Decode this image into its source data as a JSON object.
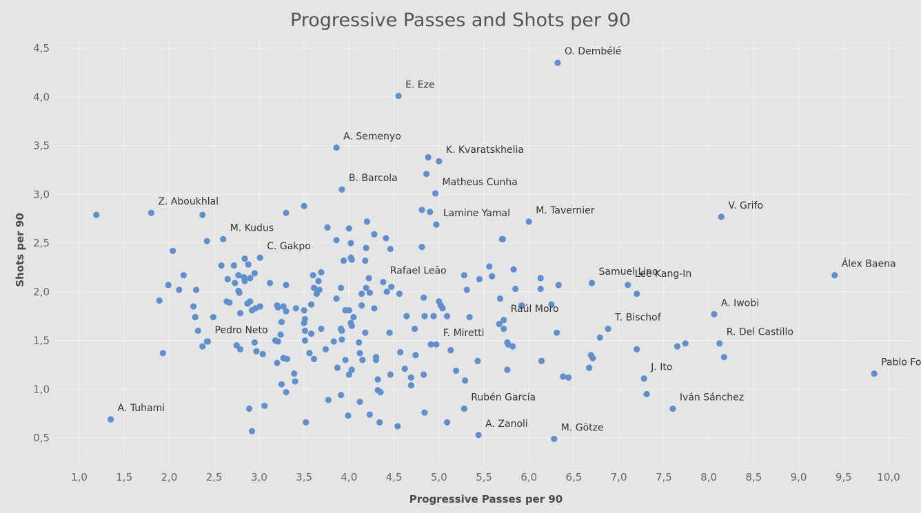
{
  "chart_data": {
    "type": "scatter",
    "title": "Progressive Passes and Shots per 90",
    "xlabel": "Progressive Passes per 90",
    "ylabel": "Shots per 90",
    "xlim": [
      0.75,
      10.35
    ],
    "ylim": [
      0.25,
      4.6
    ],
    "x_ticks": [
      1.0,
      1.5,
      2.0,
      2.5,
      3.0,
      3.5,
      4.0,
      4.5,
      5.0,
      5.5,
      6.0,
      6.5,
      7.0,
      7.5,
      8.0,
      8.5,
      9.0,
      9.5,
      10.0
    ],
    "x_tick_labels": [
      "1,0",
      "1,5",
      "2,0",
      "2,5",
      "3,0",
      "3,5",
      "4,0",
      "4,5",
      "5,0",
      "5,5",
      "6,0",
      "6,5",
      "7,0",
      "7,5",
      "8,0",
      "8,5",
      "9,0",
      "9,5",
      "10,0"
    ],
    "y_ticks": [
      0.5,
      1.0,
      1.5,
      2.0,
      2.5,
      3.0,
      3.5,
      4.0,
      4.5
    ],
    "y_tick_labels": [
      "0,5",
      "1,0",
      "1,5",
      "2,0",
      "2,5",
      "3,0",
      "3,5",
      "4,0",
      "4,5"
    ],
    "grid": true,
    "point_color": "#5f8fcc",
    "background": "#e5e5e5",
    "labeled_points": [
      {
        "name": "O. Dembélé",
        "x": 6.32,
        "y": 4.35
      },
      {
        "name": "E. Eze",
        "x": 4.55,
        "y": 4.01
      },
      {
        "name": "A. Semenyo",
        "x": 3.86,
        "y": 3.48
      },
      {
        "name": "K. Kvaratskhelia",
        "x": 5.0,
        "y": 3.34
      },
      {
        "name": "B. Barcola",
        "x": 3.92,
        "y": 3.05
      },
      {
        "name": "Matheus Cunha",
        "x": 4.96,
        "y": 3.01
      },
      {
        "name": "Z. Aboukhlal",
        "x": 1.8,
        "y": 2.81
      },
      {
        "name": "Lamine Yamal",
        "x": 4.97,
        "y": 2.69
      },
      {
        "name": "M. Tavernier",
        "x": 6.0,
        "y": 2.72
      },
      {
        "name": "V. Grifo",
        "x": 8.14,
        "y": 2.77
      },
      {
        "name": "M. Kudus",
        "x": 2.6,
        "y": 2.54
      },
      {
        "name": "C. Gakpo",
        "x": 3.01,
        "y": 2.35
      },
      {
        "name": "Rafael Leão",
        "x": 4.38,
        "y": 2.1
      },
      {
        "name": "Samuel Lino",
        "x": 6.7,
        "y": 2.09
      },
      {
        "name": "Lee Kang-In",
        "x": 7.1,
        "y": 2.07
      },
      {
        "name": "Álex Baena",
        "x": 9.4,
        "y": 2.17
      },
      {
        "name": "A. Iwobi",
        "x": 8.06,
        "y": 1.77
      },
      {
        "name": "Raúl Moro",
        "x": 5.72,
        "y": 1.71
      },
      {
        "name": "T. Bischof",
        "x": 6.88,
        "y": 1.62
      },
      {
        "name": "Pedro Neto",
        "x": 2.43,
        "y": 1.49
      },
      {
        "name": "F. Miretti",
        "x": 4.97,
        "y": 1.46
      },
      {
        "name": "R. Del Castillo",
        "x": 8.12,
        "y": 1.47
      },
      {
        "name": "Pablo Fornals",
        "x": 9.84,
        "y": 1.16
      },
      {
        "name": "J. Ito",
        "x": 7.28,
        "y": 1.11
      },
      {
        "name": "Rubén García",
        "x": 5.28,
        "y": 0.8
      },
      {
        "name": "Iván Sánchez",
        "x": 7.6,
        "y": 0.8
      },
      {
        "name": "A. Tuhami",
        "x": 1.35,
        "y": 0.69
      },
      {
        "name": "A. Zanoli",
        "x": 5.44,
        "y": 0.53
      },
      {
        "name": "M. Götze",
        "x": 6.28,
        "y": 0.49
      }
    ],
    "other_points": [
      [
        1.19,
        2.79
      ],
      [
        2.37,
        2.79
      ],
      [
        3.3,
        2.81
      ],
      [
        3.5,
        2.88
      ],
      [
        2.04,
        2.42
      ],
      [
        2.42,
        2.52
      ],
      [
        2.58,
        2.27
      ],
      [
        2.65,
        2.13
      ],
      [
        2.72,
        2.27
      ],
      [
        2.73,
        2.09
      ],
      [
        2.77,
        2.17
      ],
      [
        2.84,
        2.34
      ],
      [
        2.88,
        2.28
      ],
      [
        2.83,
        2.15
      ],
      [
        2.84,
        2.11
      ],
      [
        2.9,
        2.14
      ],
      [
        2.95,
        2.19
      ],
      [
        1.99,
        2.07
      ],
      [
        2.11,
        2.02
      ],
      [
        2.16,
        2.17
      ],
      [
        2.3,
        2.02
      ],
      [
        1.89,
        1.91
      ],
      [
        2.27,
        1.85
      ],
      [
        2.29,
        1.74
      ],
      [
        2.32,
        1.6
      ],
      [
        2.37,
        1.44
      ],
      [
        2.49,
        1.74
      ],
      [
        2.64,
        1.9
      ],
      [
        2.67,
        1.89
      ],
      [
        2.77,
        2.01
      ],
      [
        2.78,
        1.99
      ],
      [
        2.79,
        1.78
      ],
      [
        2.87,
        1.88
      ],
      [
        2.9,
        1.9
      ],
      [
        2.92,
        1.81
      ],
      [
        2.96,
        1.83
      ],
      [
        3.01,
        1.85
      ],
      [
        3.12,
        2.09
      ],
      [
        3.3,
        2.07
      ],
      [
        3.2,
        1.86
      ],
      [
        3.21,
        1.84
      ],
      [
        3.27,
        1.85
      ],
      [
        3.3,
        1.8
      ],
      [
        3.41,
        1.83
      ],
      [
        3.5,
        1.81
      ],
      [
        3.58,
        1.87
      ],
      [
        3.6,
        2.17
      ],
      [
        3.66,
        2.11
      ],
      [
        3.69,
        2.2
      ],
      [
        3.61,
        2.04
      ],
      [
        3.67,
        2.02
      ],
      [
        3.64,
        1.98
      ],
      [
        3.76,
        2.66
      ],
      [
        3.86,
        2.53
      ],
      [
        3.94,
        2.32
      ],
      [
        4.0,
        2.65
      ],
      [
        4.02,
        2.5
      ],
      [
        4.02,
        2.35
      ],
      [
        4.03,
        2.33
      ],
      [
        4.2,
        2.72
      ],
      [
        4.28,
        2.59
      ],
      [
        4.41,
        2.55
      ],
      [
        4.46,
        2.44
      ],
      [
        4.19,
        2.45
      ],
      [
        4.18,
        2.32
      ],
      [
        4.81,
        2.46
      ],
      [
        4.81,
        2.84
      ],
      [
        4.86,
        3.21
      ],
      [
        4.88,
        3.38
      ],
      [
        4.9,
        2.82
      ],
      [
        1.93,
        1.37
      ],
      [
        2.42,
        1.49
      ],
      [
        2.75,
        1.45
      ],
      [
        2.79,
        1.41
      ],
      [
        2.95,
        1.48
      ],
      [
        2.97,
        1.39
      ],
      [
        3.04,
        1.36
      ],
      [
        3.18,
        1.5
      ],
      [
        3.21,
        1.49
      ],
      [
        3.24,
        1.56
      ],
      [
        3.25,
        1.69
      ],
      [
        3.27,
        1.32
      ],
      [
        3.31,
        1.31
      ],
      [
        3.2,
        1.27
      ],
      [
        3.39,
        1.16
      ],
      [
        3.4,
        1.08
      ],
      [
        3.25,
        1.05
      ],
      [
        3.3,
        0.97
      ],
      [
        3.5,
        1.68
      ],
      [
        3.51,
        1.72
      ],
      [
        3.51,
        1.6
      ],
      [
        3.51,
        1.5
      ],
      [
        3.58,
        1.57
      ],
      [
        3.56,
        1.37
      ],
      [
        3.61,
        1.31
      ],
      [
        3.69,
        1.62
      ],
      [
        3.74,
        1.41
      ],
      [
        3.91,
        1.62
      ],
      [
        3.92,
        1.51
      ],
      [
        3.87,
        1.22
      ],
      [
        3.96,
        1.3
      ],
      [
        3.96,
        1.81
      ],
      [
        4.0,
        1.81
      ],
      [
        3.91,
        2.04
      ],
      [
        3.86,
        1.93
      ],
      [
        4.02,
        1.68
      ],
      [
        4.03,
        1.65
      ],
      [
        4.05,
        1.74
      ],
      [
        4.11,
        1.48
      ],
      [
        4.12,
        1.37
      ],
      [
        4.15,
        1.3
      ],
      [
        4.18,
        1.58
      ],
      [
        4.19,
        2.04
      ],
      [
        4.22,
        2.14
      ],
      [
        4.23,
        1.99
      ],
      [
        4.28,
        1.83
      ],
      [
        4.3,
        1.33
      ],
      [
        4.3,
        1.3
      ],
      [
        4.32,
        1.1
      ],
      [
        4.32,
        0.99
      ],
      [
        4.35,
        0.97
      ],
      [
        4.14,
        1.86
      ],
      [
        4.14,
        1.98
      ],
      [
        4.45,
        1.58
      ],
      [
        4.46,
        1.15
      ],
      [
        4.47,
        2.05
      ],
      [
        4.56,
        1.98
      ],
      [
        4.42,
        2.0
      ],
      [
        4.57,
        1.38
      ],
      [
        4.62,
        1.21
      ],
      [
        4.64,
        1.75
      ],
      [
        4.69,
        1.12
      ],
      [
        4.69,
        1.04
      ],
      [
        4.73,
        1.62
      ],
      [
        4.74,
        1.35
      ],
      [
        4.83,
        1.94
      ],
      [
        4.83,
        1.15
      ],
      [
        4.84,
        1.75
      ],
      [
        4.91,
        1.46
      ],
      [
        4.94,
        1.75
      ],
      [
        5.0,
        1.9
      ],
      [
        5.02,
        1.86
      ],
      [
        5.04,
        1.83
      ],
      [
        5.09,
        1.75
      ],
      [
        5.13,
        1.4
      ],
      [
        5.19,
        1.19
      ],
      [
        5.29,
        1.09
      ],
      [
        5.34,
        1.74
      ],
      [
        5.28,
        2.17
      ],
      [
        5.31,
        2.02
      ],
      [
        5.43,
        1.29
      ],
      [
        5.45,
        2.13
      ],
      [
        5.56,
        2.26
      ],
      [
        5.59,
        2.16
      ],
      [
        5.67,
        1.67
      ],
      [
        5.68,
        1.93
      ],
      [
        5.7,
        2.54
      ],
      [
        5.71,
        2.54
      ],
      [
        5.72,
        1.62
      ],
      [
        5.76,
        1.48
      ],
      [
        5.77,
        1.46
      ],
      [
        5.76,
        1.2
      ],
      [
        5.82,
        1.44
      ],
      [
        5.83,
        2.23
      ],
      [
        5.85,
        2.03
      ],
      [
        5.92,
        1.86
      ],
      [
        6.13,
        2.14
      ],
      [
        6.13,
        2.03
      ],
      [
        6.14,
        1.29
      ],
      [
        6.25,
        1.87
      ],
      [
        6.31,
        1.58
      ],
      [
        6.33,
        2.07
      ],
      [
        6.38,
        1.13
      ],
      [
        6.44,
        1.12
      ],
      [
        6.67,
        1.22
      ],
      [
        6.69,
        1.35
      ],
      [
        6.71,
        1.32
      ],
      [
        6.79,
        1.53
      ],
      [
        7.2,
        1.98
      ],
      [
        7.2,
        1.41
      ],
      [
        7.31,
        0.95
      ],
      [
        7.65,
        1.44
      ],
      [
        7.74,
        1.47
      ],
      [
        8.17,
        1.33
      ],
      [
        4.0,
        1.15
      ],
      [
        3.91,
        0.94
      ],
      [
        3.99,
        0.73
      ],
      [
        4.03,
        1.2
      ],
      [
        4.12,
        0.87
      ],
      [
        4.23,
        0.74
      ],
      [
        4.34,
        0.66
      ],
      [
        4.54,
        0.62
      ],
      [
        4.84,
        0.76
      ],
      [
        5.09,
        0.66
      ],
      [
        5.28,
        0.8
      ],
      [
        3.52,
        0.66
      ],
      [
        3.77,
        0.89
      ],
      [
        2.89,
        0.8
      ],
      [
        2.92,
        0.57
      ],
      [
        3.06,
        0.83
      ],
      [
        3.83,
        1.49
      ],
      [
        3.92,
        1.6
      ]
    ]
  }
}
